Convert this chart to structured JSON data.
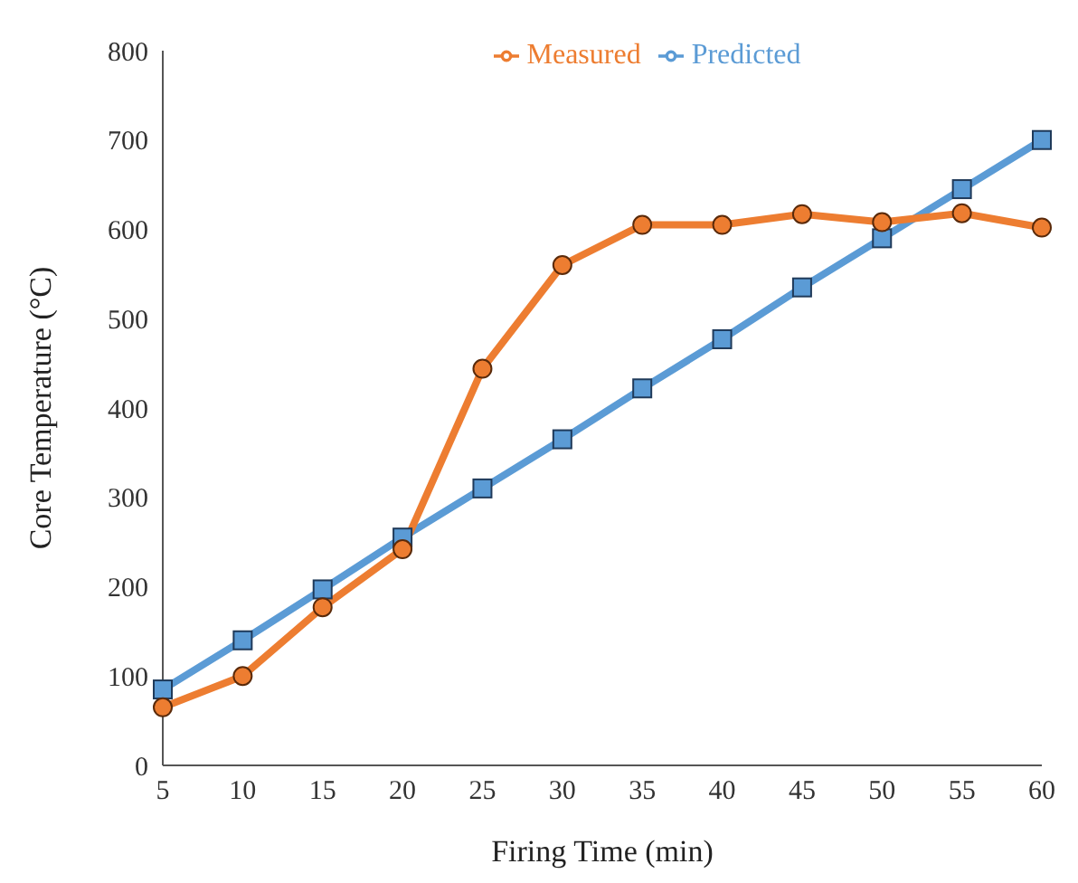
{
  "chart_data": {
    "type": "line",
    "xlabel": "Firing Time (min)",
    "ylabel": "Core Temperature (°C)",
    "categories": [
      "5",
      "10",
      "15",
      "20",
      "25",
      "30",
      "35",
      "40",
      "45",
      "50",
      "55",
      "60"
    ],
    "series": [
      {
        "name": "Predicted",
        "color": "#5b9bd5",
        "marker": "square",
        "values": [
          85,
          140,
          197,
          255,
          310,
          365,
          422,
          477,
          535,
          590,
          645,
          700
        ]
      },
      {
        "name": "Measured",
        "color": "#ed7d31",
        "marker": "circle",
        "values": [
          65,
          100,
          177,
          242,
          444,
          560,
          605,
          605,
          617,
          608,
          618,
          602
        ]
      }
    ],
    "ylim": [
      0,
      800
    ],
    "yticks": [
      0,
      100,
      200,
      300,
      400,
      500,
      600,
      700,
      800
    ],
    "grid": false,
    "legend": "top",
    "line_style": "solid"
  }
}
